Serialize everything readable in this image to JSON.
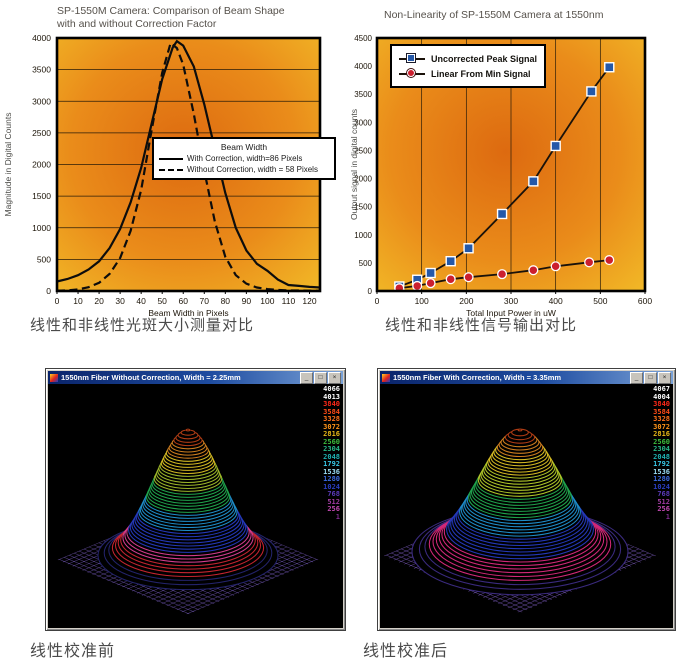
{
  "colors": {
    "plot_bg_inner": "#dd6a10",
    "plot_bg_mid": "#ea8c1a",
    "plot_bg_outer": "#f2bc28",
    "curve": "#0d0d0d",
    "nonlin_line": "#1a120a",
    "gridline": "#2a1c08",
    "title_text": "#56514b",
    "caption_text": "#4a4a4a",
    "titlebar_from": "#0a246a",
    "titlebar_to": "#7aa2d8",
    "surface_grid_before": "#7a5ec2",
    "surface_grid_after": "#8562cc",
    "scale_colors": [
      "#ffffff",
      "#ffffff",
      "#ff2818",
      "#ff4c18",
      "#ff7018",
      "#ff9418",
      "#e8b818",
      "#3cbe3c",
      "#28b888",
      "#1eb2b2",
      "#38c8e8",
      "#9adcf4",
      "#3a6ae0",
      "#2a3ec2",
      "#5a3ab8",
      "#a03aa0",
      "#c048b0",
      "#7c2a8c"
    ]
  },
  "surface_palettes": {
    "before": [
      [
        0.09,
        "#23236a"
      ],
      [
        0.17,
        "#c42430"
      ],
      [
        0.23,
        "#d23c8c"
      ],
      [
        0.36,
        "#2438b8"
      ],
      [
        0.48,
        "#1e8cc8"
      ],
      [
        0.62,
        "#1fa24c"
      ],
      [
        0.74,
        "#9ab428"
      ],
      [
        0.84,
        "#d2b822"
      ],
      [
        0.92,
        "#cc7c1e"
      ],
      [
        1.01,
        "#b03c14"
      ]
    ],
    "after": [
      [
        0.08,
        "#3a2a7e"
      ],
      [
        0.2,
        "#d22878"
      ],
      [
        0.34,
        "#2438b8"
      ],
      [
        0.46,
        "#1e8cc8"
      ],
      [
        0.6,
        "#1fa24c"
      ],
      [
        0.74,
        "#aec428"
      ],
      [
        0.85,
        "#d2b822"
      ],
      [
        0.93,
        "#cc7c1e"
      ],
      [
        1.01,
        "#b03c14"
      ]
    ]
  },
  "windows": {
    "controls": {
      "minimize": "_",
      "maximize": "□",
      "close": "×"
    }
  },
  "chart_data": [
    {
      "type": "line",
      "title": "SP-1550M Camera: Comparison of Beam Shape with and without Correction Factor",
      "title_line1": "SP-1550M Camera: Comparison of Beam Shape",
      "title_line2": "with and without Correction Factor",
      "xlabel": "Beam Width in Pixels",
      "ylabel": "Magnitude in Digital Counts",
      "xlim": [
        0,
        125
      ],
      "ylim": [
        0,
        4000
      ],
      "x_tick_step": 10,
      "y_tick_step": 500,
      "grid": "horizontal",
      "legend_title": "Beam Width",
      "legend_position": "right-center",
      "caption": "线性和非线性光斑大小测量对比",
      "series": [
        {
          "name": "With Correction, width=86 Pixels",
          "style": "solid",
          "x": [
            0,
            5,
            10,
            15,
            20,
            25,
            30,
            35,
            40,
            45,
            50,
            55,
            57,
            60,
            65,
            70,
            75,
            80,
            85,
            90,
            95,
            100,
            105,
            110,
            115,
            120,
            125
          ],
          "y": [
            150,
            190,
            250,
            340,
            470,
            680,
            980,
            1400,
            1950,
            2650,
            3350,
            3850,
            3950,
            3880,
            3550,
            2950,
            2250,
            1550,
            1000,
            640,
            430,
            320,
            180,
            95,
            80,
            65,
            55
          ]
        },
        {
          "name": "Without Correction, width = 58 Pixels",
          "style": "dashed",
          "x": [
            0,
            5,
            10,
            15,
            20,
            25,
            30,
            35,
            40,
            45,
            50,
            54,
            57,
            60,
            65,
            70,
            75,
            80,
            85,
            90,
            95,
            100,
            105,
            110,
            115,
            120,
            125
          ],
          "y": [
            5,
            10,
            25,
            60,
            130,
            270,
            520,
            950,
            1600,
            2550,
            3450,
            3920,
            3840,
            3580,
            2800,
            1900,
            1100,
            540,
            250,
            115,
            55,
            30,
            18,
            10,
            8,
            5,
            5
          ]
        }
      ]
    },
    {
      "type": "line-scatter",
      "title": "Non-Linearity of SP-1550M Camera at 1550nm",
      "xlabel": "Total Input Power in uW",
      "ylabel": "Output signal in digital counts",
      "xlim": [
        0,
        600
      ],
      "ylim": [
        0,
        4500
      ],
      "x_tick_step": 100,
      "y_tick_step": 500,
      "grid": "vertical",
      "legend_position": "top-left",
      "caption": "线性和非线性信号输出对比",
      "series": [
        {
          "name": "Uncorrected Peak Signal",
          "marker": "square",
          "color": "#2458a8",
          "x": [
            50,
            90,
            120,
            165,
            205,
            280,
            350,
            400,
            480,
            520
          ],
          "y": [
            80,
            200,
            320,
            530,
            760,
            1370,
            1950,
            2580,
            3550,
            3980
          ]
        },
        {
          "name": "Linear From Min Signal",
          "marker": "circle",
          "color": "#cc1f2e",
          "x": [
            50,
            90,
            120,
            165,
            205,
            280,
            350,
            400,
            475,
            520
          ],
          "y": [
            50,
            90,
            140,
            210,
            245,
            300,
            370,
            440,
            510,
            550
          ]
        }
      ]
    },
    {
      "type": "surface",
      "title": "1550nm Fiber Without Correction, Width = 2.25mm",
      "caption": "线性校准前",
      "scale_values": [
        "4066",
        "4013",
        "3840",
        "3584",
        "3328",
        "3072",
        "2816",
        "2560",
        "2304",
        "2048",
        "1792",
        "1536",
        "1280",
        "1024",
        "768",
        "512",
        "256",
        "1"
      ]
    },
    {
      "type": "surface",
      "title": "1550nm Fiber With Correction, Width = 3.35mm",
      "caption": "线性校准后",
      "scale_values": [
        "4067",
        "4004",
        "3840",
        "3584",
        "3328",
        "3072",
        "2816",
        "2560",
        "2304",
        "2048",
        "1792",
        "1536",
        "1280",
        "1024",
        "768",
        "512",
        "256",
        "1"
      ]
    }
  ]
}
